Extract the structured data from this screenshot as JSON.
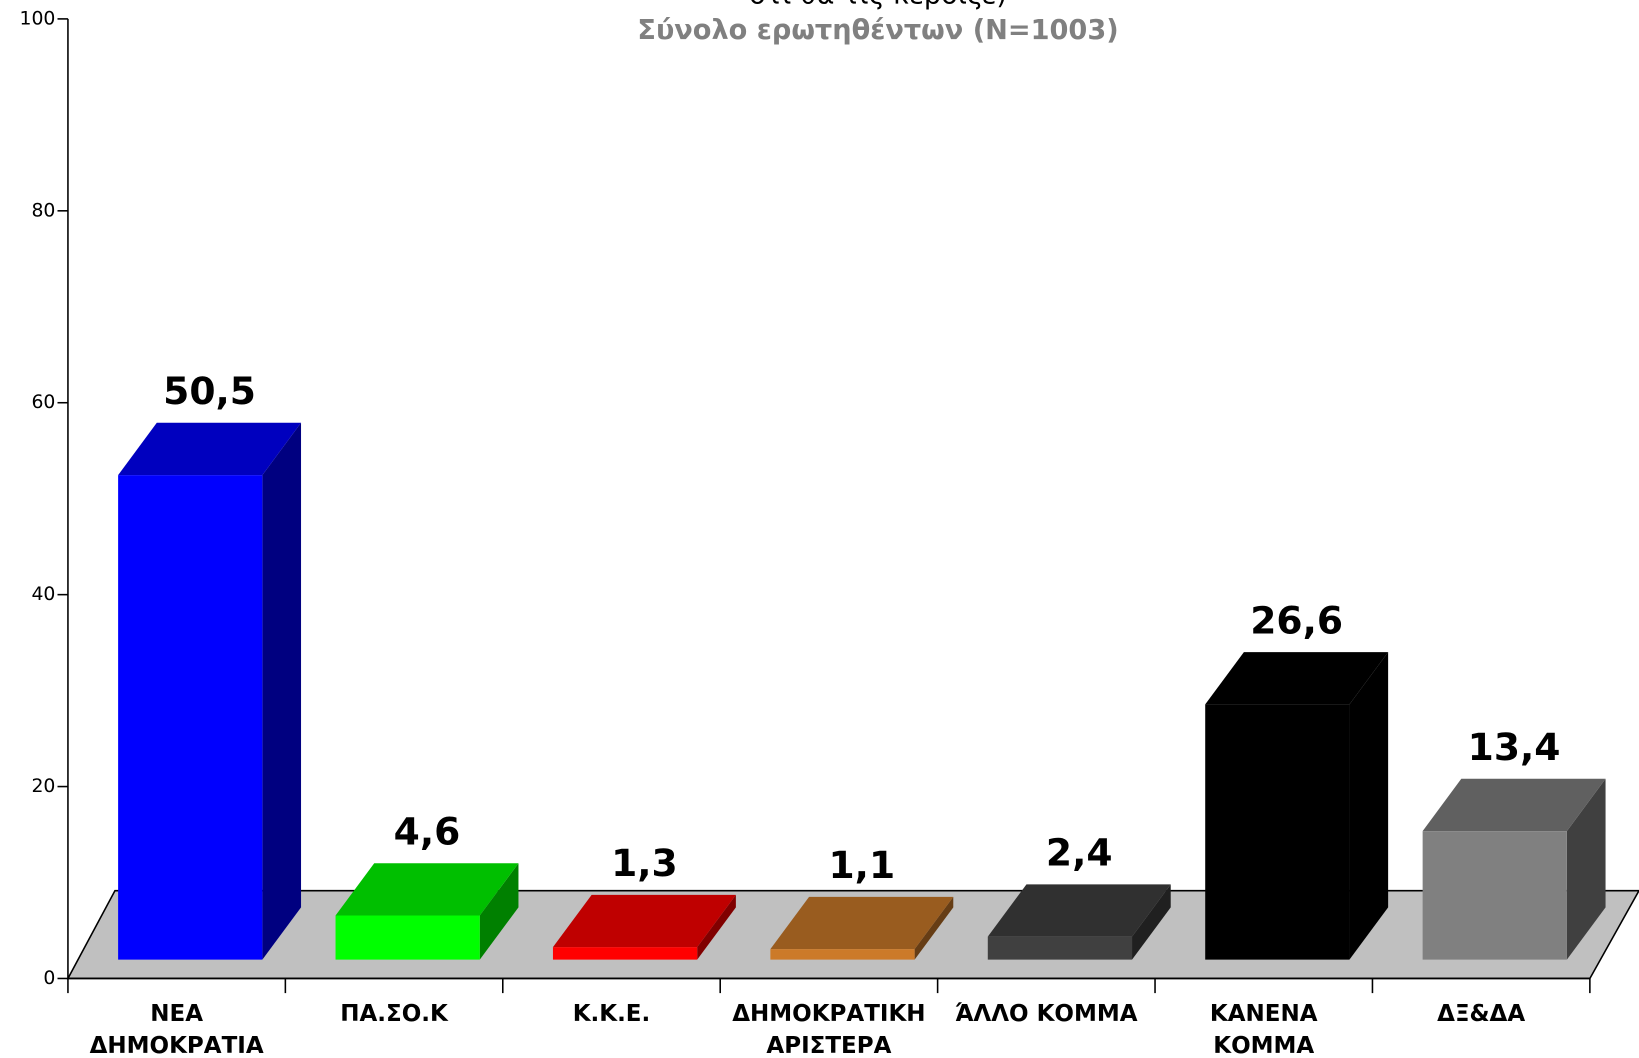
{
  "chart_data": {
    "type": "bar3d",
    "title": "ότι θα τις κέρδιζε)",
    "subtitle": "Σύνολο ερωτηθέντων (Ν=1003)",
    "categories": [
      "ΝΕΑ ΔΗΜΟΚΡΑΤΙΑ",
      "ΠΑ.ΣΟ.Κ",
      "Κ.Κ.Ε.",
      "ΔΗΜΟΚΡΑΤΙΚΗ ΑΡΙΣΤΕΡΑ",
      "ΆΛΛΟ ΚΟΜΜΑ",
      "ΚΑΝΕΝΑ ΚΟΜΜΑ",
      "ΔΞ&ΔΑ"
    ],
    "values": [
      50.5,
      4.6,
      1.3,
      1.1,
      2.4,
      26.6,
      13.4
    ],
    "value_labels": [
      "50,5",
      "4,6",
      "1,3",
      "1,1",
      "2,4",
      "26,6",
      "13,4"
    ],
    "colors": [
      "#0000ff",
      "#00ff00",
      "#ff0000",
      "#cc7a29",
      "#404040",
      "#000000",
      "#808080"
    ],
    "ylim": [
      0,
      100
    ],
    "yticks": [
      0,
      20,
      40,
      60,
      80,
      100
    ]
  }
}
